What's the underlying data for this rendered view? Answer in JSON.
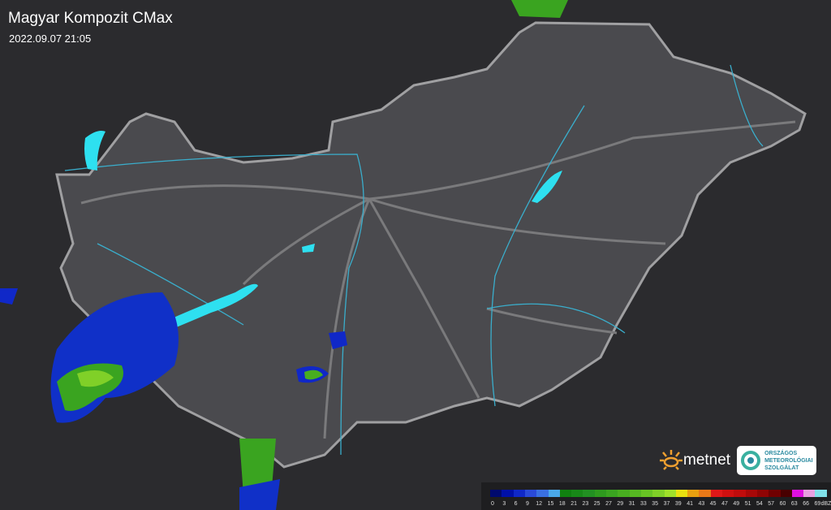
{
  "header": {
    "title": "Magyar Kompozit CMax",
    "timestamp": "2022.09.07 21:05"
  },
  "logos": {
    "metnet": "metnet",
    "omsz": [
      "ORSZÁGOS",
      "METEOROLÓGIAI",
      "SZOLGÁLAT"
    ]
  },
  "legend": {
    "unit": "dBZ",
    "labels": [
      "0",
      "3",
      "6",
      "9",
      "12",
      "15",
      "18",
      "21",
      "23",
      "25",
      "27",
      "29",
      "31",
      "33",
      "35",
      "37",
      "39",
      "41",
      "43",
      "45",
      "47",
      "49",
      "51",
      "54",
      "57",
      "60",
      "63",
      "66",
      "69"
    ],
    "colors": [
      "#000a6e",
      "#0010a8",
      "#1028c8",
      "#2a4ad8",
      "#3a70e0",
      "#4aa8e8",
      "#108010",
      "#188818",
      "#229022",
      "#2e9a1e",
      "#3aa420",
      "#48ae20",
      "#56b822",
      "#68c424",
      "#80d028",
      "#a0e02a",
      "#e8e010",
      "#e8a010",
      "#e87818",
      "#e01818",
      "#d01010",
      "#c00c0c",
      "#a80808",
      "#900404",
      "#700000",
      "#480000",
      "#e010e0",
      "#e8a0e0",
      "#80e0e8"
    ]
  },
  "colors": {
    "background": "#2b2b2e",
    "country": "#4a4a4e",
    "border": "#9a9a9c",
    "rivers": "#3aaecc",
    "lakes": "#2ee0f0",
    "roads": "#7a7a7c"
  }
}
